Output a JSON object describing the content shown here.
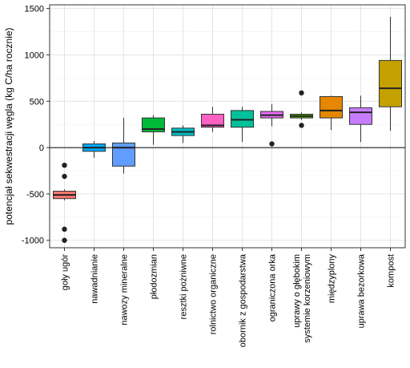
{
  "chart_data": {
    "type": "boxplot",
    "title": "",
    "xlabel": "",
    "ylabel": "potencjał sekwestracji węgla (kg C/ha rocznie)",
    "ylim": [
      -1080,
      1540
    ],
    "yticks": [
      -1000,
      -500,
      0,
      500,
      1000,
      1500
    ],
    "grid": true,
    "legend": "none",
    "reference_line_y": 0,
    "categories": [
      "goły ugór",
      "nawadnianie",
      "nawozy mineralne",
      "płodozmian",
      "resztki pożniwne",
      "rolnictwo organiczne",
      "obornik z gospodarstwa",
      "ograniczona orka",
      "uprawy o głębokim systemie korzeniowym",
      "międzyplony",
      "uprawa bezorkowa",
      "kompost"
    ],
    "boxes": [
      {
        "category": "goły ugór",
        "min": -570,
        "q1": -550,
        "median": -510,
        "q3": -470,
        "max": -450,
        "outliers": [
          -190,
          -310,
          -880,
          -1000
        ],
        "color": "#F8766D"
      },
      {
        "category": "nawadnianie",
        "min": -110,
        "q1": -40,
        "median": 0,
        "q3": 40,
        "max": 70,
        "outliers": [],
        "color": "#00A9FF"
      },
      {
        "category": "nawozy mineralne",
        "min": -280,
        "q1": -200,
        "median": 0,
        "q3": 50,
        "max": 320,
        "outliers": [],
        "color": "#619CFF"
      },
      {
        "category": "płodozmian",
        "min": 30,
        "q1": 170,
        "median": 200,
        "q3": 320,
        "max": 350,
        "outliers": [],
        "color": "#00BA38"
      },
      {
        "category": "resztki pożniwne",
        "min": 50,
        "q1": 130,
        "median": 170,
        "q3": 210,
        "max": 240,
        "outliers": [],
        "color": "#00BFC4"
      },
      {
        "category": "rolnictwo organiczne",
        "min": 170,
        "q1": 220,
        "median": 240,
        "q3": 360,
        "max": 440,
        "outliers": [],
        "color": "#FF61C3"
      },
      {
        "category": "obornik z gospodarstwa",
        "min": 60,
        "q1": 220,
        "median": 300,
        "q3": 400,
        "max": 440,
        "outliers": [],
        "color": "#00C19A"
      },
      {
        "category": "ograniczona orka",
        "min": 230,
        "q1": 320,
        "median": 350,
        "q3": 390,
        "max": 470,
        "outliers": [
          40
        ],
        "color": "#E76BF3"
      },
      {
        "category": "uprawy o głębokim systemie korzeniowym",
        "min": 300,
        "q1": 320,
        "median": 340,
        "q3": 360,
        "max": 380,
        "outliers": [
          590,
          240
        ],
        "color": "#53B400"
      },
      {
        "category": "międzyplony",
        "min": 190,
        "q1": 320,
        "median": 400,
        "q3": 550,
        "max": 560,
        "outliers": [],
        "color": "#E58700"
      },
      {
        "category": "uprawa bezorkowa",
        "min": 60,
        "q1": 250,
        "median": 380,
        "q3": 430,
        "max": 560,
        "outliers": [],
        "color": "#C77CFF"
      },
      {
        "category": "kompost",
        "min": 180,
        "q1": 440,
        "median": 640,
        "q3": 940,
        "max": 1410,
        "outliers": [],
        "color": "#C4A000"
      }
    ]
  }
}
